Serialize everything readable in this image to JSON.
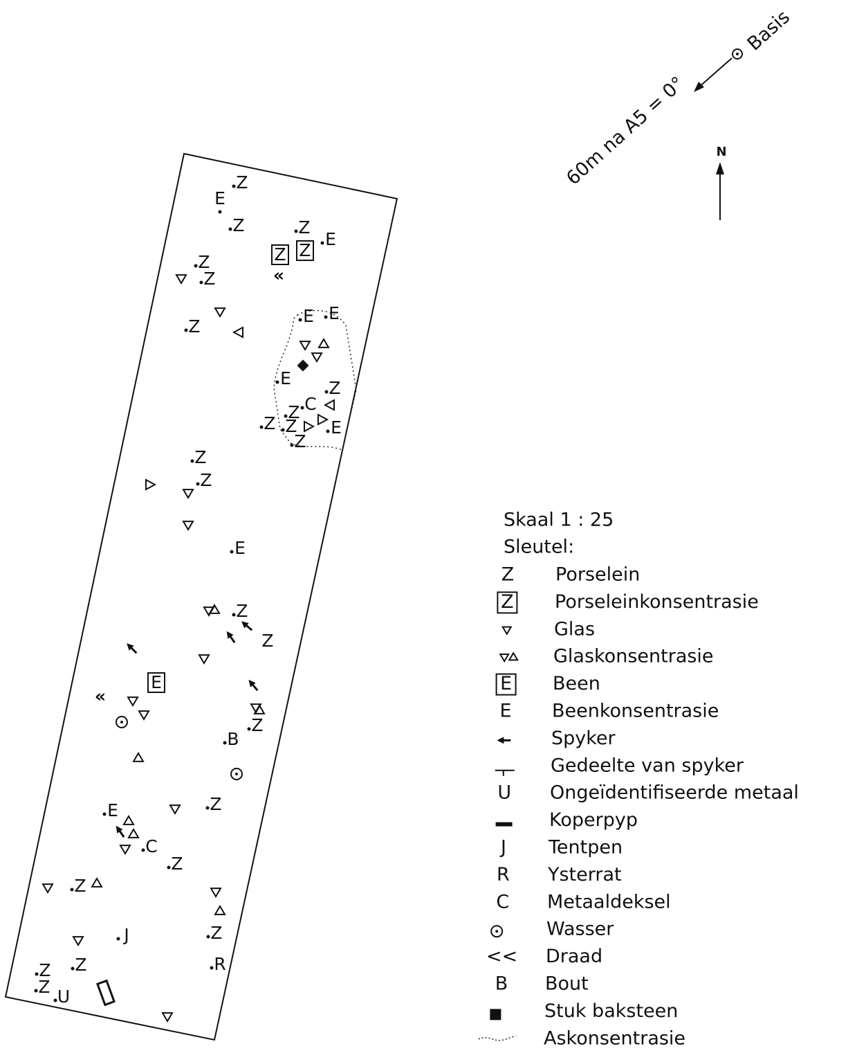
{
  "bearing": {
    "text": "60m na A5 = 0°",
    "basis": "Basis"
  },
  "north": "N",
  "map": {
    "finds": [
      "Z",
      "E",
      "Z",
      "Z",
      "E",
      "Z",
      "Z",
      "Z",
      "E",
      "E",
      "E",
      "Z",
      "C",
      "Z",
      "Z",
      "Z",
      "E",
      "Z",
      "Z",
      "Z",
      "E",
      "Z",
      "Z",
      "B",
      "Z",
      "Z",
      "E",
      "C",
      "Z",
      "Z",
      "J",
      "Z",
      "Z",
      "R",
      "Z",
      "Z",
      "U"
    ],
    "boxed": [
      "Z",
      "Z",
      "E"
    ],
    "wire": [
      "«",
      "«"
    ]
  },
  "legend": {
    "scale": "Skaal 1 : 25",
    "key_title": "Sleutel:",
    "items": [
      {
        "symbol": "Z",
        "label": "Porselein"
      },
      {
        "symbol": "Z",
        "label": "Porseleinkonsentrasie"
      },
      {
        "label": "Glas"
      },
      {
        "label": "Glaskonsentrasie"
      },
      {
        "symbol": "E",
        "label": "Been"
      },
      {
        "symbol": "E",
        "label": "Beenkonsentrasie"
      },
      {
        "label": "Spyker"
      },
      {
        "label": "Gedeelte van spyker"
      },
      {
        "symbol": "U",
        "label": "Ongeïdentifiseerde metaal"
      },
      {
        "label": "Koperpyp"
      },
      {
        "symbol": "J",
        "label": "Tentpen"
      },
      {
        "symbol": "R",
        "label": "Ysterrat"
      },
      {
        "symbol": "C",
        "label": "Metaaldeksel"
      },
      {
        "label": "Wasser"
      },
      {
        "symbol": "<<",
        "label": "Draad"
      },
      {
        "symbol": "B",
        "label": "Bout"
      },
      {
        "label": "Stuk baksteen"
      },
      {
        "label": "Askonsentrasie"
      }
    ]
  }
}
